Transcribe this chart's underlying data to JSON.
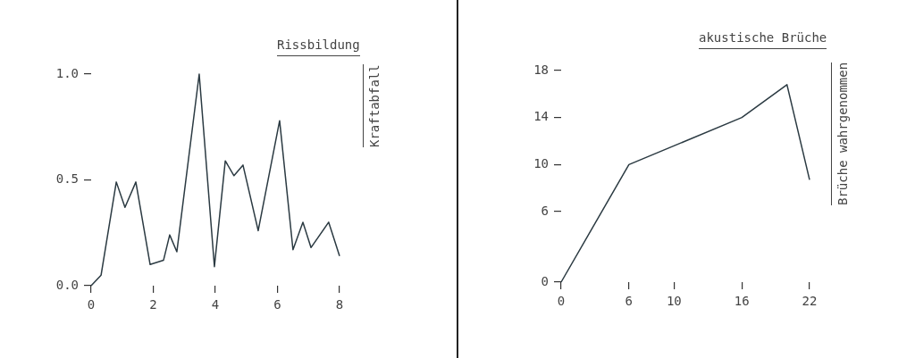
{
  "chart_data": [
    {
      "type": "line",
      "xlabel": "Rissbildung",
      "ylabel": "Kraftabfall",
      "x": [
        0,
        0.32,
        0.81,
        1.09,
        1.44,
        1.9,
        2.33,
        2.53,
        2.76,
        3.48,
        3.97,
        4.32,
        4.6,
        4.89,
        5.38,
        6.07,
        6.5,
        6.82,
        7.08,
        7.65,
        8
      ],
      "series": [
        {
          "color": "#2b3a42",
          "values": [
            0,
            0.05,
            0.49,
            0.37,
            0.49,
            0.1,
            0.12,
            0.24,
            0.16,
            1.0,
            0.09,
            0.59,
            0.52,
            0.57,
            0.26,
            0.78,
            0.17,
            0.3,
            0.18,
            0.3,
            0.14
          ]
        }
      ],
      "xlim": [
        0,
        8
      ],
      "ylim": [
        0,
        1
      ],
      "xticks": [
        0,
        2,
        4,
        6,
        8
      ],
      "yticks": [
        {
          "value": 0,
          "label": "0.0"
        },
        {
          "value": 0.5,
          "label": "0.5"
        },
        {
          "value": 1,
          "label": "1.0"
        }
      ],
      "grid": false,
      "legend": false,
      "marker": "none",
      "line_style": "solid"
    },
    {
      "type": "line",
      "xlabel": "akustische Brüche",
      "ylabel": "Brüche wahrgenommen",
      "x": [
        0,
        6,
        16,
        20,
        22
      ],
      "series": [
        {
          "color": "#2b3a42",
          "values": [
            0,
            10,
            14,
            16.8,
            8.7
          ]
        }
      ],
      "xlim": [
        0,
        22
      ],
      "ylim": [
        0,
        18
      ],
      "xticks": [
        0,
        6,
        10,
        16,
        22
      ],
      "yticks": [
        0,
        6,
        10,
        14,
        18
      ],
      "grid": false,
      "legend": false,
      "marker": "none",
      "line_style": "solid"
    }
  ]
}
